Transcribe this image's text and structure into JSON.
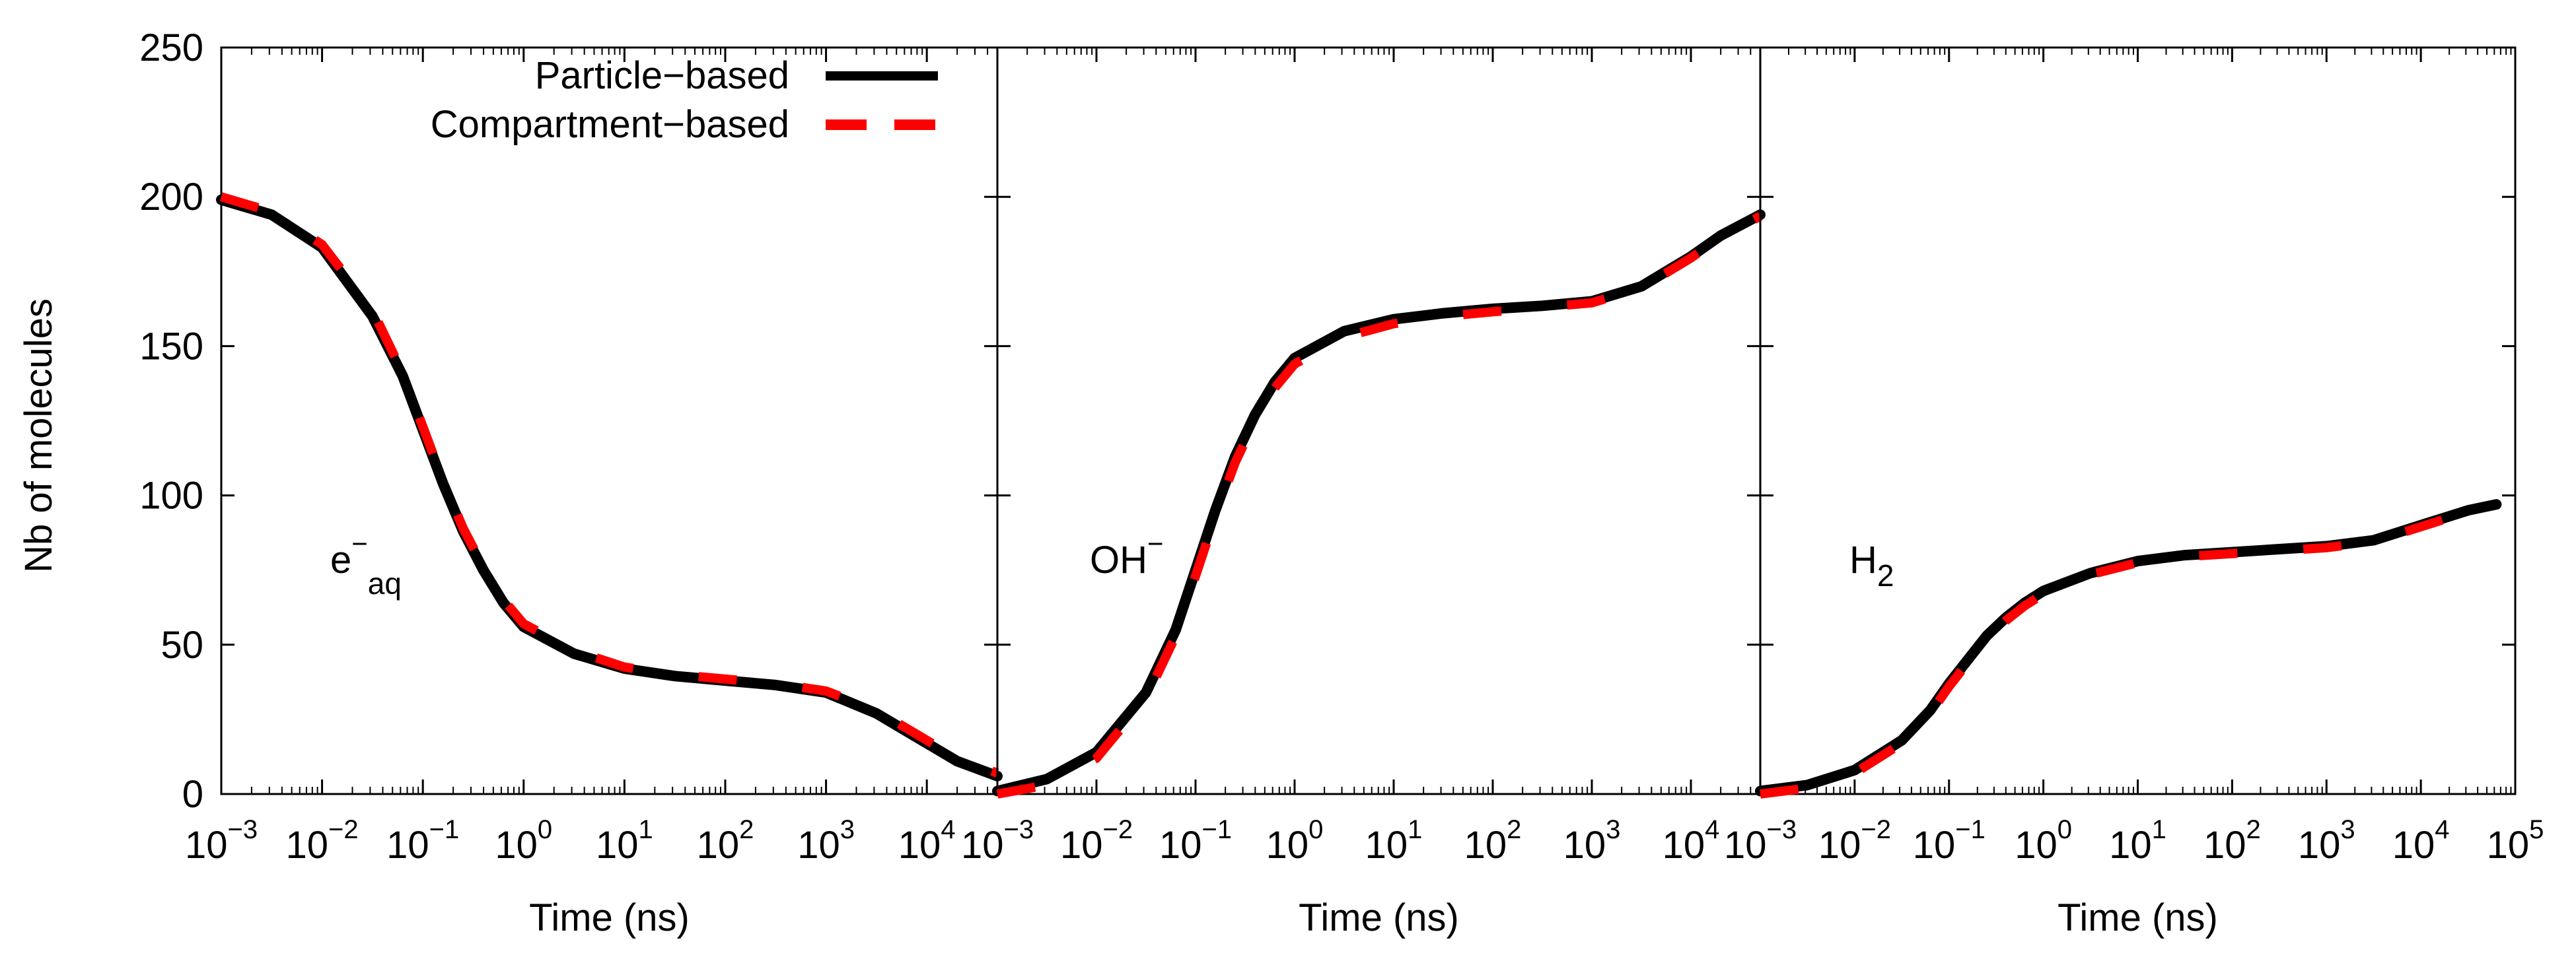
{
  "chart_data": {
    "type": "line",
    "ylabel": "Nb of molecules",
    "ylim": [
      0,
      250
    ],
    "yticks": [
      0,
      50,
      100,
      150,
      200,
      250
    ],
    "ytick_labels": [
      "0",
      "50",
      "100",
      "150",
      "200",
      "250"
    ],
    "legend": {
      "position": "top-left of first panel",
      "entries": [
        {
          "label": "Particle−based",
          "color": "#000000",
          "style": "solid"
        },
        {
          "label": "Compartment−based",
          "color": "#ff0000",
          "style": "dashed"
        }
      ]
    },
    "panels": [
      {
        "species_base": "e",
        "species_sup": "−",
        "species_sub": "aq",
        "xlabel": "Time (ns)",
        "xscale": "log",
        "xlim_exp": [
          -3,
          4.7
        ],
        "xtick_base": "10",
        "xtick_exponents": [
          "−3",
          "−2",
          "−1",
          "0",
          "1",
          "2",
          "3",
          "4"
        ],
        "series": [
          {
            "name": "Particle−based",
            "x_log10": [
              -3,
              -2.5,
              -2,
              -1.5,
              -1.2,
              -1,
              -0.8,
              -0.6,
              -0.4,
              -0.2,
              0,
              0.5,
              1,
              1.5,
              2,
              2.5,
              3,
              3.5,
              4,
              4.3,
              4.7
            ],
            "y": [
              199,
              194,
              183,
              160,
              140,
              122,
              104,
              88,
              75,
              64,
              56,
              47,
              42,
              39.5,
              38,
              36.5,
              34,
              27,
              17,
              11,
              6
            ]
          },
          {
            "name": "Compartment−based",
            "x_log10": [
              -3,
              -2.5,
              -2,
              -1.5,
              -1.2,
              -1,
              -0.8,
              -0.6,
              -0.4,
              -0.2,
              0,
              0.5,
              1,
              1.5,
              2,
              2.5,
              3,
              3.5,
              4,
              4.3,
              4.7
            ],
            "y": [
              200,
              195,
              184,
              162,
              141,
              123,
              105,
              89,
              76,
              65,
              57,
              48,
              42.5,
              40,
              38.5,
              37,
              34.5,
              28,
              18,
              12,
              7
            ]
          }
        ]
      },
      {
        "species_base": "OH",
        "species_sup": "−",
        "species_sub": "",
        "xlabel": "Time (ns)",
        "xscale": "log",
        "xlim_exp": [
          -3,
          4.7
        ],
        "xtick_base": "10",
        "xtick_exponents": [
          "−3",
          "−2",
          "−1",
          "0",
          "1",
          "2",
          "3",
          "4"
        ],
        "series": [
          {
            "name": "Particle−based",
            "x_log10": [
              -3,
              -2.5,
              -2,
              -1.5,
              -1.2,
              -1,
              -0.8,
              -0.6,
              -0.4,
              -0.2,
              0,
              0.5,
              1,
              1.5,
              2,
              2.5,
              3,
              3.5,
              4,
              4.3,
              4.7
            ],
            "y": [
              1,
              5,
              14,
              34,
              55,
              75,
              95,
              113,
              127,
              138,
              146,
              155,
              159,
              161,
              162.5,
              163.5,
              165,
              170,
              180,
              187,
              194
            ]
          },
          {
            "name": "Compartment−based",
            "x_log10": [
              -3,
              -2.5,
              -2,
              -1.5,
              -1.2,
              -1,
              -0.8,
              -0.6,
              -0.4,
              -0.2,
              0,
              0.5,
              1,
              1.5,
              2,
              2.5,
              3,
              3.5,
              4,
              4.3,
              4.7
            ],
            "y": [
              0,
              3,
              12,
              32,
              53,
              73,
              93,
              111,
              125,
              136,
              144,
              153,
              157.5,
              160,
              161.5,
              163,
              164.5,
              169.5,
              179.5,
              186.5,
              193.5
            ]
          }
        ]
      },
      {
        "species_base": "H",
        "species_sup": "",
        "species_sub": "2",
        "xlabel": "Time (ns)",
        "xscale": "log",
        "xlim_exp": [
          -3,
          5
        ],
        "xtick_base": "10",
        "xtick_exponents": [
          "−3",
          "−2",
          "−1",
          "0",
          "1",
          "2",
          "3",
          "4",
          "5"
        ],
        "series": [
          {
            "name": "Particle−based",
            "x_log10": [
              -3,
              -2.5,
              -2,
              -1.5,
              -1.2,
              -1,
              -0.8,
              -0.6,
              -0.4,
              -0.2,
              0,
              0.5,
              1,
              1.5,
              2,
              2.5,
              3,
              3.5,
              4,
              4.5,
              4.8
            ],
            "y": [
              1,
              3,
              8,
              18,
              28,
              37,
              45,
              53,
              59,
              64,
              68,
              74,
              78,
              80,
              81,
              82,
              83,
              85,
              90,
              95,
              97
            ]
          },
          {
            "name": "Compartment−based",
            "x_log10": [
              -3,
              -2.5,
              -2,
              -1.5,
              -1.2,
              -1,
              -0.8,
              -0.6,
              -0.4,
              -0.2,
              0,
              0.5,
              1,
              1.5,
              2,
              2.5,
              3,
              3.5,
              4,
              4.5,
              4.8
            ],
            "y": [
              0,
              2,
              7,
              17,
              27,
              36,
              44,
              52,
              58,
              63,
              67,
              73.5,
              77.5,
              79.5,
              80.5,
              81.5,
              82.5,
              84.5,
              89.5,
              94.5,
              96.5
            ]
          }
        ]
      }
    ]
  }
}
